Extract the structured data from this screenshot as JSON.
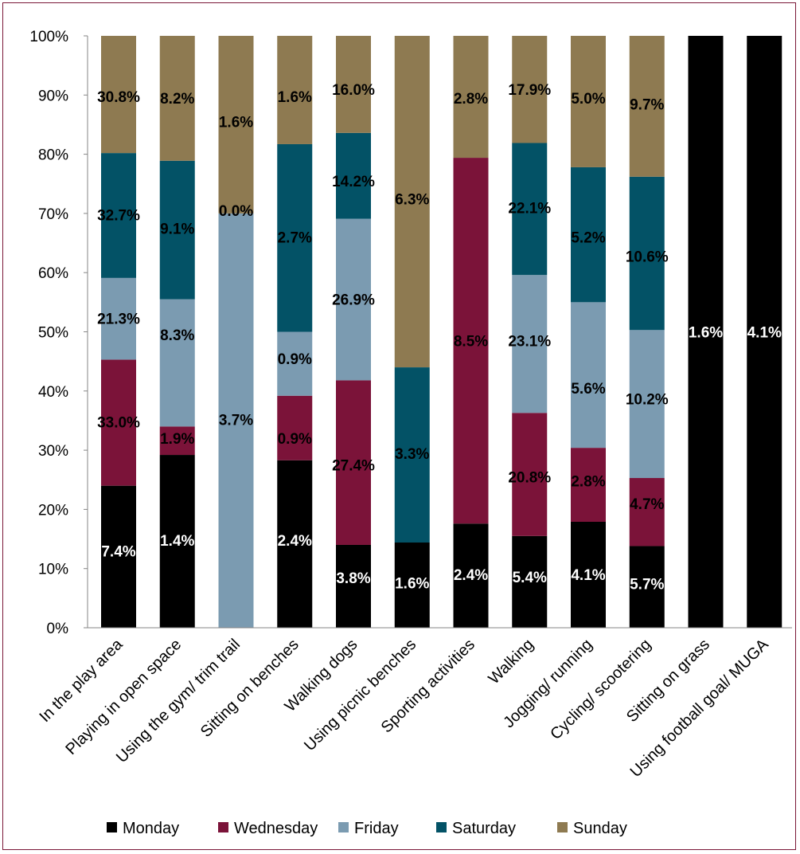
{
  "chart_data": {
    "type": "bar",
    "stacked": true,
    "percent": true,
    "categories": [
      "In the play area",
      "Playing in open space",
      "Using the gym/ trim trail",
      "Sitting on benches",
      "Walking dogs",
      "Using picnic benches",
      "Sporting activities",
      "Walking",
      "Jogging/ running",
      "Cycling/ scootering",
      "Sitting on grass",
      "Using football goal/ MUGA"
    ],
    "yticks": [
      "0%",
      "10%",
      "20%",
      "30%",
      "40%",
      "50%",
      "60%",
      "70%",
      "80%",
      "90%",
      "100%"
    ],
    "ylim": [
      0,
      100
    ],
    "legend_position": "bottom",
    "series": [
      {
        "name": "Monday",
        "color": "#000000",
        "values": [
          24.0,
          29.2,
          0,
          28.3,
          14.0,
          14.4,
          17.6,
          15.5,
          17.9,
          13.8,
          100,
          100
        ],
        "labels": [
          "7.4%",
          "1.4%",
          "",
          "2.4%",
          "3.8%",
          "1.6%",
          "2.4%",
          "5.4%",
          "4.1%",
          "5.7%",
          "1.6%",
          "4.1%"
        ],
        "label_y": [
          13.0,
          14.8,
          null,
          14.8,
          8.5,
          7.6,
          9.0,
          8.6,
          9.0,
          7.5,
          50.0,
          50.0
        ]
      },
      {
        "name": "Wednesday",
        "color": "#7b1339",
        "values": [
          21.3,
          4.8,
          0,
          10.9,
          27.8,
          0,
          61.8,
          20.8,
          12.5,
          11.5,
          0,
          0
        ],
        "labels": [
          "33.0%",
          "1.9%",
          "",
          "0.9%",
          "27.4%",
          "",
          "8.5%",
          "20.8%",
          "2.8%",
          "4.7%",
          "",
          ""
        ],
        "label_y": [
          34.8,
          32.0,
          null,
          32.0,
          27.5,
          null,
          48.5,
          25.5,
          24.8,
          21.0,
          null,
          null
        ]
      },
      {
        "name": "Friday",
        "color": "#7b9bb1",
        "values": [
          13.8,
          21.5,
          70.0,
          10.8,
          27.3,
          0,
          0,
          23.3,
          24.6,
          25.0,
          0,
          0
        ],
        "labels": [
          "21.3%",
          "8.3%",
          "3.7%",
          "0.9%",
          "26.9%",
          "",
          "",
          "23.1%",
          "5.6%",
          "10.2%",
          "",
          ""
        ],
        "label_y": [
          52.3,
          49.5,
          35.2,
          45.5,
          55.5,
          null,
          null,
          48.5,
          40.5,
          38.7,
          null,
          null
        ]
      },
      {
        "name": "Saturday",
        "color": "#035266",
        "values": [
          21.1,
          23.4,
          0,
          31.7,
          14.5,
          29.6,
          0,
          22.3,
          22.8,
          25.9,
          0,
          0
        ],
        "labels": [
          "32.7%",
          "9.1%",
          "0.0%",
          "2.7%",
          "14.2%",
          "3.3%",
          "",
          "22.1%",
          "5.2%",
          "10.6%",
          "",
          ""
        ],
        "label_y": [
          69.8,
          67.5,
          70.5,
          66.0,
          75.5,
          29.5,
          null,
          71.0,
          66.0,
          62.8,
          null,
          null
        ]
      },
      {
        "name": "Sunday",
        "color": "#8e7a51",
        "values": [
          19.8,
          21.1,
          30.0,
          18.3,
          16.4,
          56.0,
          20.6,
          18.1,
          22.2,
          23.8,
          0,
          0
        ],
        "labels": [
          "30.8%",
          "8.2%",
          "1.6%",
          "1.6%",
          "16.0%",
          "6.3%",
          "2.8%",
          "17.9%",
          "5.0%",
          "9.7%",
          "",
          ""
        ],
        "label_y": [
          89.8,
          89.5,
          85.5,
          89.8,
          91.0,
          72.5,
          89.5,
          91.0,
          89.5,
          88.5,
          null,
          null
        ]
      }
    ]
  }
}
